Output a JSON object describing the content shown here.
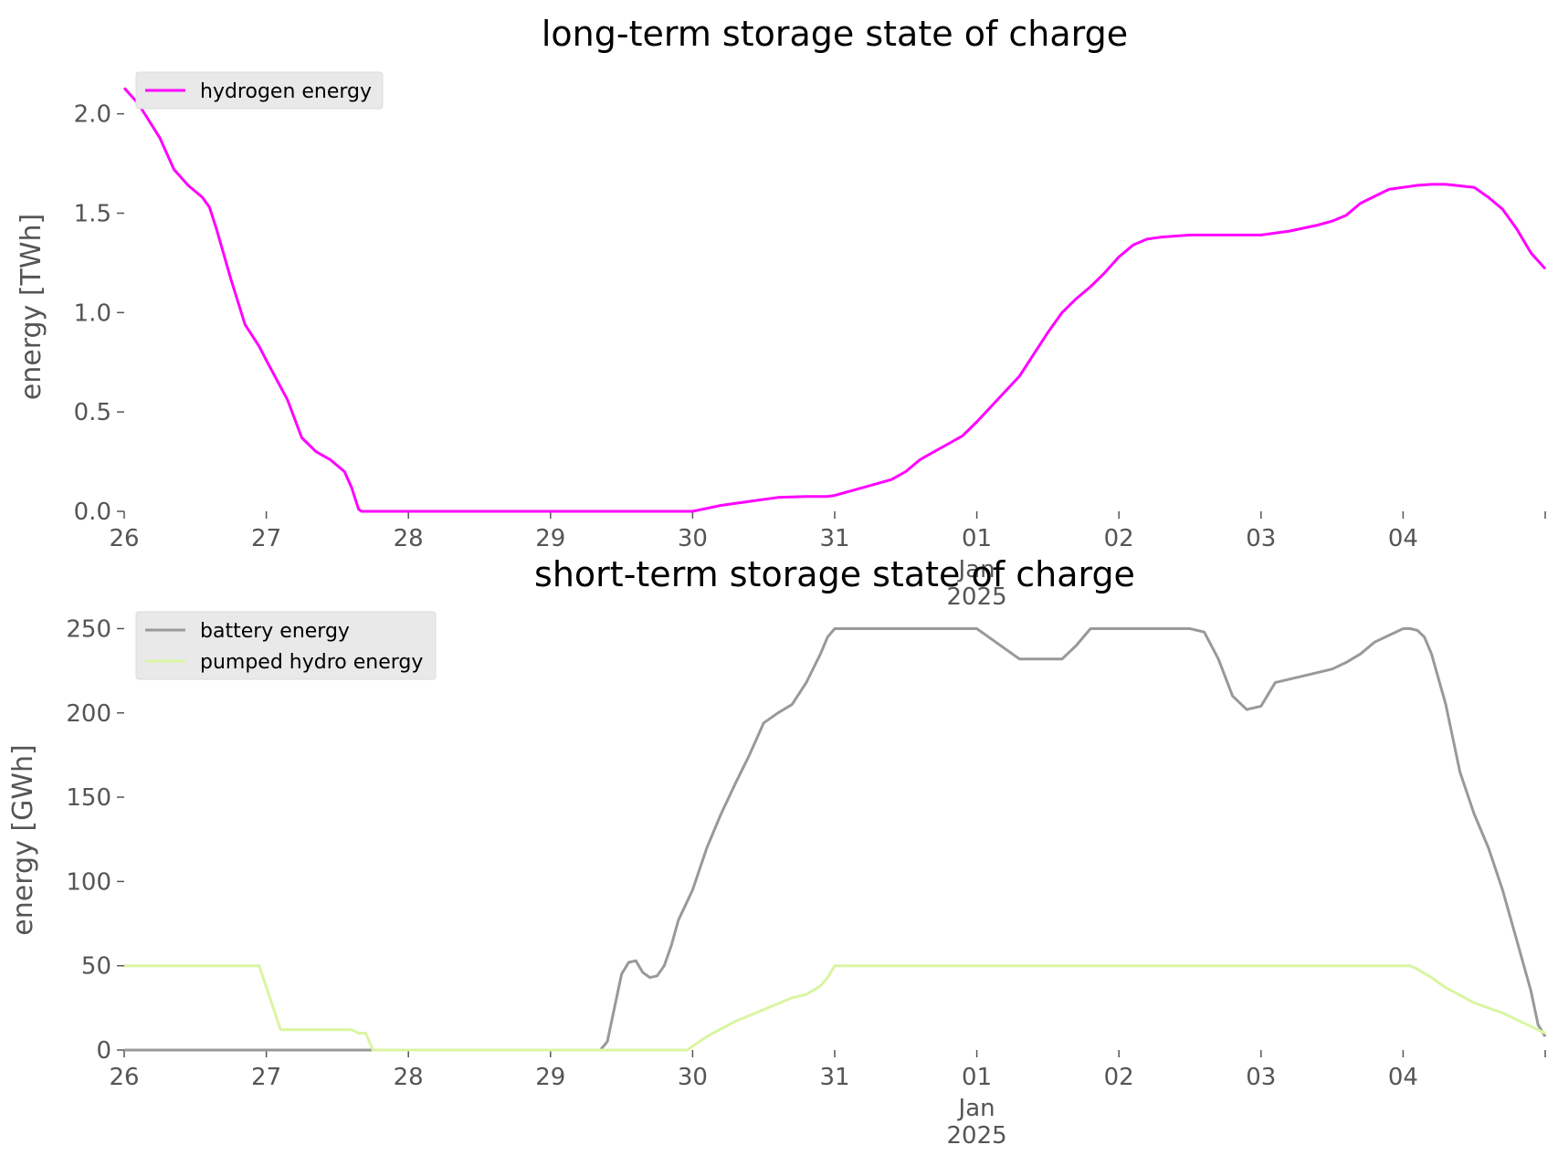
{
  "chart_data": [
    {
      "type": "line",
      "title": "long-term storage state of charge",
      "ylabel": "energy [TWh]",
      "xlabel": "",
      "ylim": [
        0,
        2.15
      ],
      "yticks": [
        "0.0",
        "0.5",
        "1.0",
        "1.5",
        "2.0"
      ],
      "ytick_values": [
        0,
        0.5,
        1.0,
        1.5,
        2.0
      ],
      "xlim": [
        "2024-12-26",
        "2025-01-05"
      ],
      "xticks": [
        {
          "day": 0,
          "label": "26"
        },
        {
          "day": 1,
          "label": "27"
        },
        {
          "day": 2,
          "label": "28"
        },
        {
          "day": 3,
          "label": "29"
        },
        {
          "day": 4,
          "label": "30"
        },
        {
          "day": 5,
          "label": "31"
        },
        {
          "day": 6,
          "label": "01",
          "sub1": "Jan",
          "sub2": "2025"
        },
        {
          "day": 7,
          "label": "02"
        },
        {
          "day": 8,
          "label": "03"
        },
        {
          "day": 9,
          "label": "04"
        },
        {
          "day": 10,
          "label": ""
        }
      ],
      "legend_position": "top-left",
      "grid": false,
      "series": [
        {
          "name": "hydrogen energy",
          "color": "#ff00ff",
          "x": [
            0,
            0.1,
            0.25,
            0.35,
            0.45,
            0.55,
            0.6,
            0.65,
            0.75,
            0.85,
            0.95,
            1.0,
            1.15,
            1.25,
            1.35,
            1.45,
            1.55,
            1.6,
            1.65,
            1.67,
            2.0,
            3.0,
            4.0,
            4.2,
            4.4,
            4.6,
            4.8,
            4.95,
            5.0,
            5.2,
            5.4,
            5.5,
            5.6,
            5.7,
            5.8,
            5.9,
            6.0,
            6.3,
            6.5,
            6.6,
            6.7,
            6.8,
            6.9,
            7.0,
            7.1,
            7.2,
            7.3,
            7.5,
            7.7,
            7.9,
            8.0,
            8.2,
            8.4,
            8.5,
            8.6,
            8.7,
            8.9,
            9.0,
            9.1,
            9.2,
            9.3,
            9.5,
            9.6,
            9.7,
            9.75,
            9.8,
            9.9,
            10.0
          ],
          "y": [
            2.13,
            2.05,
            1.88,
            1.72,
            1.64,
            1.58,
            1.53,
            1.42,
            1.17,
            0.94,
            0.83,
            0.76,
            0.56,
            0.37,
            0.3,
            0.26,
            0.2,
            0.12,
            0.01,
            0.0,
            0.0,
            0.0,
            0.0,
            0.03,
            0.05,
            0.07,
            0.075,
            0.075,
            0.08,
            0.12,
            0.16,
            0.2,
            0.26,
            0.3,
            0.34,
            0.38,
            0.45,
            0.68,
            0.9,
            1.0,
            1.07,
            1.13,
            1.2,
            1.28,
            1.34,
            1.37,
            1.38,
            1.39,
            1.39,
            1.39,
            1.39,
            1.41,
            1.44,
            1.46,
            1.49,
            1.55,
            1.62,
            1.63,
            1.64,
            1.645,
            1.645,
            1.63,
            1.58,
            1.52,
            1.47,
            1.42,
            1.3,
            1.22
          ]
        }
      ]
    },
    {
      "type": "line",
      "title": "short-term storage state of charge",
      "ylabel": "energy [GWh]",
      "xlabel": "",
      "ylim": [
        0,
        260
      ],
      "yticks": [
        "0",
        "50",
        "100",
        "150",
        "200",
        "250"
      ],
      "ytick_values": [
        0,
        50,
        100,
        150,
        200,
        250
      ],
      "xlim": [
        "2024-12-26",
        "2025-01-05"
      ],
      "xticks": [
        {
          "day": 0,
          "label": "26"
        },
        {
          "day": 1,
          "label": "27"
        },
        {
          "day": 2,
          "label": "28"
        },
        {
          "day": 3,
          "label": "29"
        },
        {
          "day": 4,
          "label": "30"
        },
        {
          "day": 5,
          "label": "31"
        },
        {
          "day": 6,
          "label": "01",
          "sub1": "Jan",
          "sub2": "2025"
        },
        {
          "day": 7,
          "label": "02"
        },
        {
          "day": 8,
          "label": "03"
        },
        {
          "day": 9,
          "label": "04"
        },
        {
          "day": 10,
          "label": ""
        }
      ],
      "legend_position": "top-left",
      "grid": false,
      "series": [
        {
          "name": "battery energy",
          "color": "#999999",
          "x": [
            0,
            3.0,
            3.35,
            3.4,
            3.5,
            3.55,
            3.6,
            3.65,
            3.7,
            3.75,
            3.8,
            3.85,
            3.9,
            4.0,
            4.1,
            4.2,
            4.3,
            4.4,
            4.5,
            4.6,
            4.7,
            4.8,
            4.9,
            4.95,
            5.0,
            5.1,
            5.3,
            5.5,
            5.7,
            5.9,
            5.95,
            6.0,
            6.3,
            6.5,
            6.6,
            6.7,
            6.8,
            7.0,
            7.5,
            7.6,
            7.7,
            7.8,
            7.9,
            8.0,
            8.1,
            8.3,
            8.5,
            8.6,
            8.7,
            8.8,
            9.0,
            9.05,
            9.1,
            9.15,
            9.2,
            9.3,
            9.4,
            9.5,
            9.6,
            9.7,
            9.8,
            9.9,
            9.95,
            10.0
          ],
          "y": [
            0,
            0,
            0,
            5,
            45,
            52,
            53,
            46,
            43,
            44,
            50,
            62,
            77,
            95,
            120,
            140,
            158,
            175,
            194,
            200,
            205,
            218,
            235,
            245,
            250,
            250,
            250,
            250,
            250,
            250,
            250,
            250,
            232,
            232,
            232,
            240,
            250,
            250,
            250,
            248,
            232,
            210,
            202,
            204,
            218,
            222,
            226,
            230,
            235,
            242,
            250,
            250,
            249,
            245,
            235,
            205,
            165,
            140,
            120,
            95,
            65,
            35,
            15,
            8
          ]
        },
        {
          "name": "pumped hydro energy",
          "color": "#d9f5a1",
          "x": [
            0,
            0.95,
            1.1,
            1.6,
            1.65,
            1.7,
            1.75,
            2.0,
            3.0,
            3.96,
            4.1,
            4.3,
            4.5,
            4.7,
            4.8,
            4.9,
            4.95,
            5.0,
            9.0,
            9.05,
            9.1,
            9.2,
            9.3,
            9.5,
            9.7,
            9.9,
            10.0
          ],
          "y": [
            50,
            50,
            12,
            12,
            10,
            10,
            0,
            0,
            0,
            0,
            8,
            17,
            24,
            31,
            33,
            38,
            43,
            50,
            50,
            50,
            48,
            43,
            37,
            28,
            22,
            14,
            10
          ]
        }
      ]
    }
  ]
}
